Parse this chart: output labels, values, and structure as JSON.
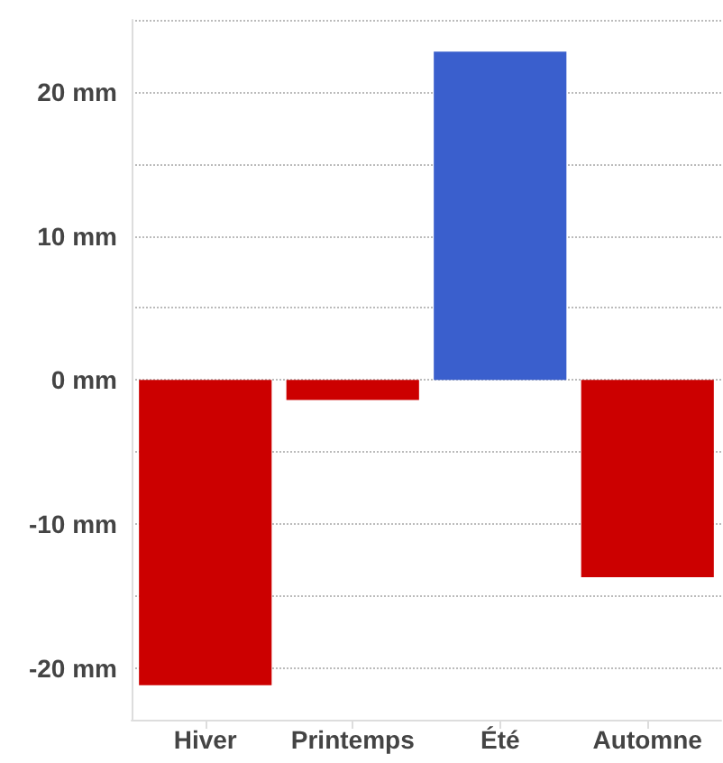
{
  "chart_data": {
    "type": "bar",
    "categories": [
      "Hiver",
      "Printemps",
      "Été",
      "Automne"
    ],
    "values": [
      -21.2,
      -1.4,
      22.8,
      -13.7
    ],
    "colors": [
      "#cc0000",
      "#cc0000",
      "#3a5fcd",
      "#cc0000"
    ],
    "ylim": [
      -23.6,
      25
    ],
    "yticks": [
      {
        "value": -20,
        "label": "-20 mm"
      },
      {
        "value": -15,
        "label": null
      },
      {
        "value": -10,
        "label": "-10 mm"
      },
      {
        "value": -5,
        "label": null
      },
      {
        "value": 0,
        "label": "0 mm"
      },
      {
        "value": 5,
        "label": null
      },
      {
        "value": 10,
        "label": "10 mm"
      },
      {
        "value": 15,
        "label": null
      },
      {
        "value": 20,
        "label": "20 mm"
      },
      {
        "value": 25,
        "label": null
      }
    ],
    "grid": true
  }
}
